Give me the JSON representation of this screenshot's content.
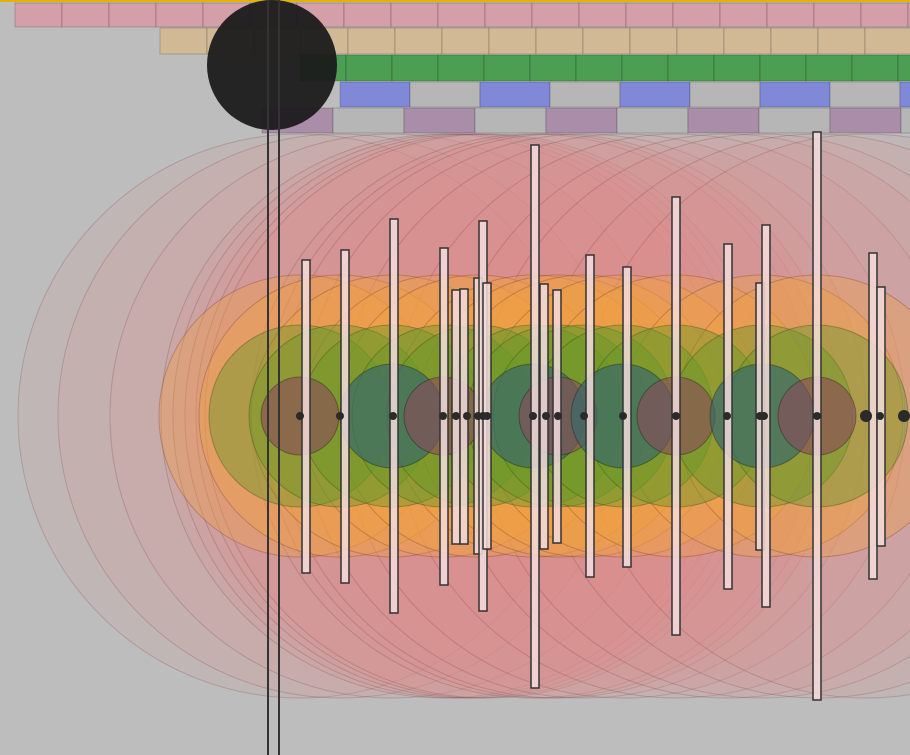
{
  "colors": {
    "page_background": "#ffffff",
    "canvas_background": "#bdbdbd",
    "top_edge_line": "#e0b400",
    "band_pink": "#d99aa6",
    "band_tan": "#d3b890",
    "band_green": "#3f9a46",
    "band_blue": "#7b86d8",
    "band_mauve": "#a98aa8",
    "band_gray": "#b5b5b5",
    "halo_outer": "#e08a8a",
    "halo_orange": "#f0a040",
    "halo_green": "#6a9a2a",
    "core_teal": "#3a6a6a",
    "core_brown": "#8a4a5a",
    "bar_fill": "#f3dcdc",
    "bar_stroke": "#333333",
    "node_dot": "#2a2a2a",
    "black_disc": "#1b1b1b",
    "marker_line": "#333333"
  },
  "icons": {
    "large_disc": "large-black-disc-icon"
  },
  "nodes": [
    {
      "outer": 1,
      "orange": true,
      "core": "brown"
    },
    {
      "outer": 1,
      "orange": true,
      "core": "none"
    },
    {
      "outer": 1,
      "orange": true,
      "core": "teal"
    },
    {
      "outer": 1,
      "orange": true,
      "core": "brown"
    },
    {
      "outer": 1,
      "orange": false,
      "core": "none"
    },
    {
      "outer": 1,
      "orange": false,
      "core": "none"
    },
    {
      "outer": 1,
      "orange": true,
      "core": "none"
    },
    {
      "outer": 1,
      "orange": false,
      "core": "none"
    },
    {
      "outer": 1,
      "orange": true,
      "core": "teal"
    },
    {
      "outer": 1,
      "orange": false,
      "core": "none"
    },
    {
      "outer": 1,
      "orange": true,
      "core": "brown"
    },
    {
      "outer": 1,
      "orange": true,
      "core": "none"
    },
    {
      "outer": 1,
      "orange": true,
      "core": "teal"
    },
    {
      "outer": 1,
      "orange": true,
      "core": "brown"
    },
    {
      "outer": 1,
      "orange": false,
      "core": "none"
    },
    {
      "outer": 1,
      "orange": true,
      "core": "teal"
    },
    {
      "outer": 1,
      "orange": true,
      "core": "brown"
    },
    {
      "outer": 1,
      "orange": false,
      "core": "none"
    }
  ]
}
